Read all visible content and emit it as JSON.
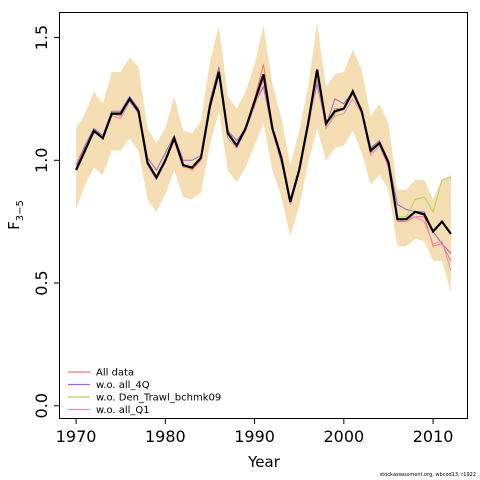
{
  "chart_data": {
    "type": "line",
    "xlabel": "Year",
    "ylabel": "F3-5",
    "ylabel_main": "F",
    "ylabel_sub": "3−5",
    "xlim": [
      1968.2,
      2013.8
    ],
    "ylim": [
      -0.05,
      1.6
    ],
    "xticks": [
      1970,
      1980,
      1990,
      2000,
      2010
    ],
    "yticks": [
      0.0,
      0.5,
      1.0,
      1.5
    ],
    "ytick_labels": [
      "0.0",
      "0.5",
      "1.0",
      "1.5"
    ],
    "grid": false,
    "legend_position": "bottom-left",
    "band_color": "#F5DEB3",
    "x": [
      1970,
      1971,
      1972,
      1973,
      1974,
      1975,
      1976,
      1977,
      1978,
      1979,
      1980,
      1981,
      1982,
      1983,
      1984,
      1985,
      1986,
      1987,
      1988,
      1989,
      1990,
      1991,
      1992,
      1993,
      1994,
      1995,
      1996,
      1997,
      1998,
      1999,
      2000,
      2001,
      2002,
      2003,
      2004,
      2005,
      2006,
      2007,
      2008,
      2009,
      2010,
      2011,
      2012
    ],
    "band_lower": [
      0.8,
      0.9,
      0.97,
      0.94,
      1.04,
      1.04,
      1.09,
      1.04,
      0.84,
      0.79,
      0.86,
      0.96,
      0.85,
      0.84,
      0.87,
      1.06,
      1.2,
      0.96,
      0.91,
      0.97,
      1.06,
      1.15,
      0.96,
      0.85,
      0.69,
      0.81,
      0.99,
      1.13,
      1.0,
      1.05,
      1.06,
      1.12,
      1.03,
      0.9,
      0.94,
      0.88,
      0.65,
      0.65,
      0.68,
      0.67,
      0.59,
      0.59,
      0.46
    ],
    "band_upper": [
      1.13,
      1.19,
      1.28,
      1.23,
      1.36,
      1.36,
      1.42,
      1.38,
      1.13,
      1.07,
      1.13,
      1.26,
      1.12,
      1.11,
      1.16,
      1.4,
      1.55,
      1.26,
      1.21,
      1.28,
      1.39,
      1.55,
      1.31,
      1.17,
      0.98,
      1.12,
      1.3,
      1.56,
      1.3,
      1.35,
      1.36,
      1.45,
      1.37,
      1.18,
      1.23,
      1.15,
      0.88,
      0.88,
      0.92,
      0.92,
      0.84,
      0.92,
      0.94
    ],
    "main_series": {
      "color": "#000000",
      "values": [
        0.96,
        1.04,
        1.12,
        1.09,
        1.19,
        1.19,
        1.25,
        1.2,
        0.99,
        0.93,
        1.0,
        1.09,
        0.98,
        0.97,
        1.01,
        1.22,
        1.36,
        1.11,
        1.06,
        1.13,
        1.24,
        1.35,
        1.13,
        1.01,
        0.83,
        0.96,
        1.15,
        1.37,
        1.15,
        1.2,
        1.21,
        1.28,
        1.2,
        1.04,
        1.07,
        0.99,
        0.76,
        0.76,
        0.79,
        0.78,
        0.71,
        0.75,
        0.7
      ]
    },
    "series": [
      {
        "name": "All data",
        "color": "#F8766D",
        "values": [
          0.97,
          1.05,
          1.12,
          1.1,
          1.19,
          1.18,
          1.25,
          1.2,
          0.99,
          0.93,
          1.0,
          1.09,
          0.98,
          0.96,
          1.0,
          1.22,
          1.37,
          1.11,
          1.06,
          1.13,
          1.25,
          1.39,
          1.13,
          1.01,
          0.82,
          0.96,
          1.15,
          1.37,
          1.14,
          1.21,
          1.21,
          1.27,
          1.21,
          1.03,
          1.07,
          0.98,
          0.75,
          0.75,
          0.77,
          0.77,
          0.65,
          0.66,
          0.59
        ]
      },
      {
        "name": "w.o. all_4Q",
        "color": "#9966CC",
        "values": [
          0.98,
          1.06,
          1.13,
          1.1,
          1.2,
          1.2,
          1.26,
          1.21,
          1.01,
          0.96,
          1.03,
          1.1,
          1.0,
          1.0,
          1.02,
          1.24,
          1.38,
          1.12,
          1.08,
          1.13,
          1.23,
          1.3,
          1.12,
          0.99,
          0.84,
          0.97,
          1.15,
          1.31,
          1.14,
          1.25,
          1.23,
          1.28,
          1.2,
          1.05,
          1.08,
          1.0,
          0.82,
          0.8,
          0.79,
          0.79,
          0.71,
          0.66,
          0.62
        ]
      },
      {
        "name": "w.o. Den_Trawl_bchmk09",
        "color": "#A6D854",
        "values": [
          0.96,
          1.04,
          1.12,
          1.09,
          1.19,
          1.19,
          1.25,
          1.2,
          0.99,
          0.93,
          1.0,
          1.09,
          0.98,
          0.97,
          1.01,
          1.22,
          1.36,
          1.11,
          1.06,
          1.13,
          1.24,
          1.33,
          1.13,
          1.01,
          0.83,
          0.96,
          1.15,
          1.36,
          1.13,
          1.19,
          1.21,
          1.29,
          1.2,
          1.04,
          1.07,
          0.99,
          0.77,
          0.77,
          0.84,
          0.85,
          0.79,
          0.92,
          0.93
        ]
      },
      {
        "name": "w.o. all_Q1",
        "color": "#E78AC3",
        "values": [
          0.97,
          1.04,
          1.11,
          1.1,
          1.18,
          1.17,
          1.24,
          1.19,
          0.98,
          0.92,
          0.99,
          1.08,
          0.97,
          0.97,
          1.0,
          1.21,
          1.35,
          1.09,
          1.05,
          1.12,
          1.22,
          1.33,
          1.12,
          1.0,
          0.82,
          0.95,
          1.13,
          1.33,
          1.13,
          1.18,
          1.19,
          1.25,
          1.19,
          1.02,
          1.06,
          0.97,
          0.75,
          0.76,
          0.77,
          0.75,
          0.66,
          0.67,
          0.55
        ]
      }
    ]
  },
  "footnote": "stockassessment.org, wbcod13, r1922"
}
